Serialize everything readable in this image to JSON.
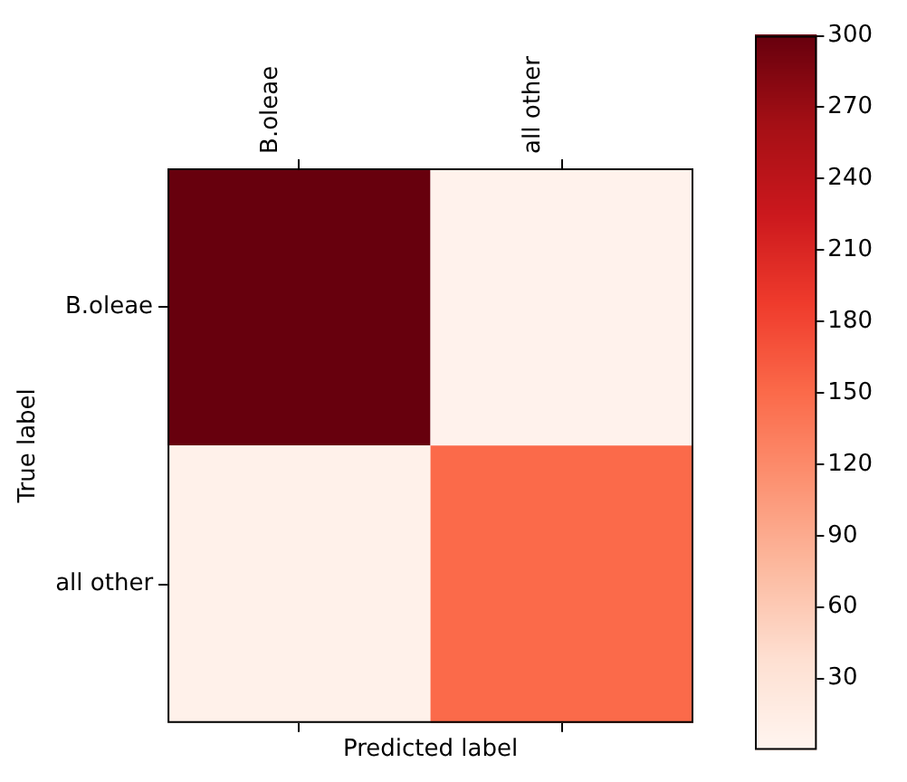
{
  "chart_data": {
    "type": "heatmap",
    "xlabel": "Predicted label",
    "ylabel": "True label",
    "categories": [
      "B.oleae",
      "all other"
    ],
    "y_categories": [
      "B.oleae",
      "all other"
    ],
    "cells": [
      [
        300,
        5
      ],
      [
        8,
        150
      ]
    ],
    "clim": [
      0,
      300
    ],
    "cticks": [
      30,
      60,
      90,
      120,
      150,
      180,
      210,
      240,
      270,
      300
    ]
  }
}
